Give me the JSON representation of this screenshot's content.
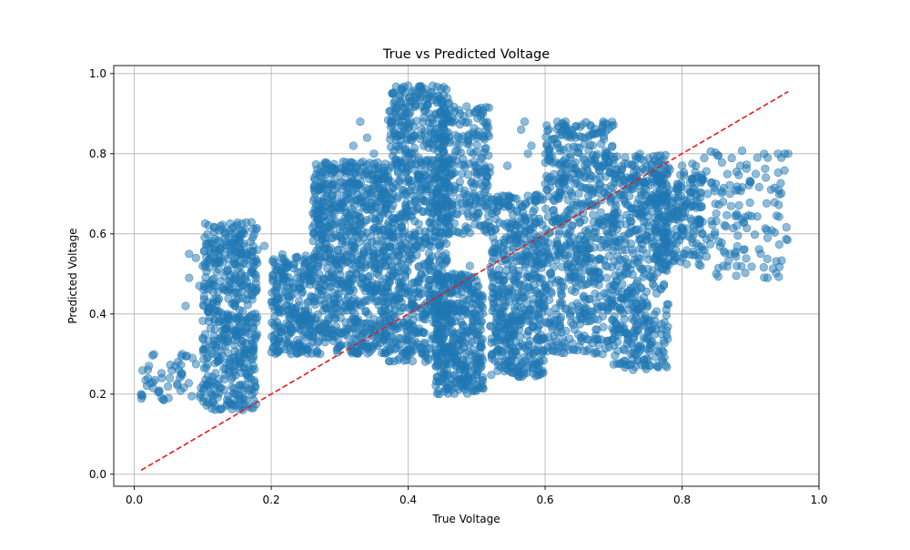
{
  "chart_data": {
    "type": "scatter",
    "title": "True vs Predicted Voltage",
    "xlabel": "True Voltage",
    "ylabel": "Predicted Voltage",
    "xlim": [
      -0.03,
      1.0
    ],
    "ylim": [
      -0.03,
      1.02
    ],
    "xticks": [
      0.0,
      0.2,
      0.4,
      0.6,
      0.8,
      1.0
    ],
    "xtick_labels": [
      "0.0",
      "0.2",
      "0.4",
      "0.6",
      "0.8",
      "1.0"
    ],
    "yticks": [
      0.0,
      0.2,
      0.4,
      0.6,
      0.8,
      1.0
    ],
    "ytick_labels": [
      "0.0",
      "0.2",
      "0.4",
      "0.6",
      "0.8",
      "1.0"
    ],
    "grid": true,
    "point_color": "#1f77b4",
    "point_alpha": 0.5,
    "reference_line": {
      "style": "dashed",
      "color": "#e41a1c",
      "x": [
        0.01,
        0.955
      ],
      "y": [
        0.01,
        0.955
      ]
    },
    "clusters": [
      {
        "x": [
          0.1,
          0.18
        ],
        "y": [
          0.16,
          0.63
        ],
        "density": 520
      },
      {
        "x": [
          0.2,
          0.26
        ],
        "y": [
          0.3,
          0.55
        ],
        "density": 260
      },
      {
        "x": [
          0.26,
          0.37
        ],
        "y": [
          0.3,
          0.78
        ],
        "density": 820
      },
      {
        "x": [
          0.37,
          0.46
        ],
        "y": [
          0.28,
          0.97
        ],
        "density": 820
      },
      {
        "x": [
          0.44,
          0.51
        ],
        "y": [
          0.2,
          0.5
        ],
        "density": 380
      },
      {
        "x": [
          0.44,
          0.52
        ],
        "y": [
          0.6,
          0.92
        ],
        "density": 260
      },
      {
        "x": [
          0.52,
          0.6
        ],
        "y": [
          0.24,
          0.7
        ],
        "density": 520
      },
      {
        "x": [
          0.6,
          0.7
        ],
        "y": [
          0.3,
          0.88
        ],
        "density": 620
      },
      {
        "x": [
          0.7,
          0.78
        ],
        "y": [
          0.26,
          0.8
        ],
        "density": 500
      },
      {
        "x": [
          0.76,
          0.83
        ],
        "y": [
          0.52,
          0.77
        ],
        "density": 220
      },
      {
        "x": [
          0.83,
          0.955
        ],
        "y": [
          0.49,
          0.81
        ],
        "density": 120
      },
      {
        "x": [
          0.005,
          0.1
        ],
        "y": [
          0.18,
          0.3
        ],
        "density": 40
      }
    ],
    "points": [
      [
        0.01,
        0.2
      ],
      [
        0.012,
        0.195
      ],
      [
        0.02,
        0.24
      ],
      [
        0.03,
        0.235
      ],
      [
        0.035,
        0.205
      ],
      [
        0.04,
        0.19
      ],
      [
        0.04,
        0.24
      ],
      [
        0.05,
        0.19
      ],
      [
        0.06,
        0.27
      ],
      [
        0.065,
        0.26
      ],
      [
        0.07,
        0.3
      ],
      [
        0.075,
        0.42
      ],
      [
        0.08,
        0.49
      ],
      [
        0.08,
        0.55
      ],
      [
        0.085,
        0.29
      ],
      [
        0.09,
        0.54
      ],
      [
        0.095,
        0.47
      ],
      [
        0.1,
        0.52
      ],
      [
        0.1,
        0.34
      ],
      [
        0.51,
        0.84
      ],
      [
        0.505,
        0.845
      ],
      [
        0.5,
        0.84
      ],
      [
        0.495,
        0.845
      ],
      [
        0.63,
        0.86
      ],
      [
        0.64,
        0.85
      ],
      [
        0.685,
        0.88
      ],
      [
        0.69,
        0.875
      ],
      [
        0.82,
        0.77
      ],
      [
        0.815,
        0.775
      ],
      [
        0.8,
        0.77
      ],
      [
        0.83,
        0.63
      ],
      [
        0.825,
        0.625
      ],
      [
        0.86,
        0.68
      ],
      [
        0.87,
        0.7
      ],
      [
        0.88,
        0.62
      ],
      [
        0.885,
        0.77
      ],
      [
        0.89,
        0.63
      ],
      [
        0.9,
        0.73
      ],
      [
        0.91,
        0.79
      ],
      [
        0.92,
        0.8
      ],
      [
        0.925,
        0.79
      ],
      [
        0.93,
        0.71
      ],
      [
        0.935,
        0.715
      ],
      [
        0.94,
        0.8
      ],
      [
        0.945,
        0.79
      ],
      [
        0.95,
        0.8
      ],
      [
        0.955,
        0.8
      ],
      [
        0.85,
        0.5
      ],
      [
        0.86,
        0.52
      ],
      [
        0.87,
        0.55
      ],
      [
        0.88,
        0.52
      ],
      [
        0.89,
        0.56
      ],
      [
        0.565,
        0.86
      ],
      [
        0.57,
        0.88
      ],
      [
        0.575,
        0.8
      ],
      [
        0.58,
        0.82
      ],
      [
        0.545,
        0.77
      ],
      [
        0.55,
        0.69
      ],
      [
        0.46,
        0.6
      ],
      [
        0.47,
        0.65
      ],
      [
        0.48,
        0.6
      ],
      [
        0.49,
        0.52
      ],
      [
        0.52,
        0.37
      ],
      [
        0.53,
        0.33
      ],
      [
        0.54,
        0.45
      ],
      [
        0.59,
        0.4
      ],
      [
        0.61,
        0.37
      ],
      [
        0.33,
        0.88
      ],
      [
        0.34,
        0.84
      ],
      [
        0.35,
        0.8
      ],
      [
        0.32,
        0.82
      ],
      [
        0.305,
        0.78
      ],
      [
        0.39,
        0.96
      ],
      [
        0.4,
        0.97
      ],
      [
        0.42,
        0.96
      ],
      [
        0.43,
        0.94
      ],
      [
        0.41,
        0.95
      ],
      [
        0.16,
        0.6
      ],
      [
        0.17,
        0.58
      ],
      [
        0.165,
        0.55
      ],
      [
        0.18,
        0.56
      ],
      [
        0.19,
        0.57
      ]
    ]
  }
}
